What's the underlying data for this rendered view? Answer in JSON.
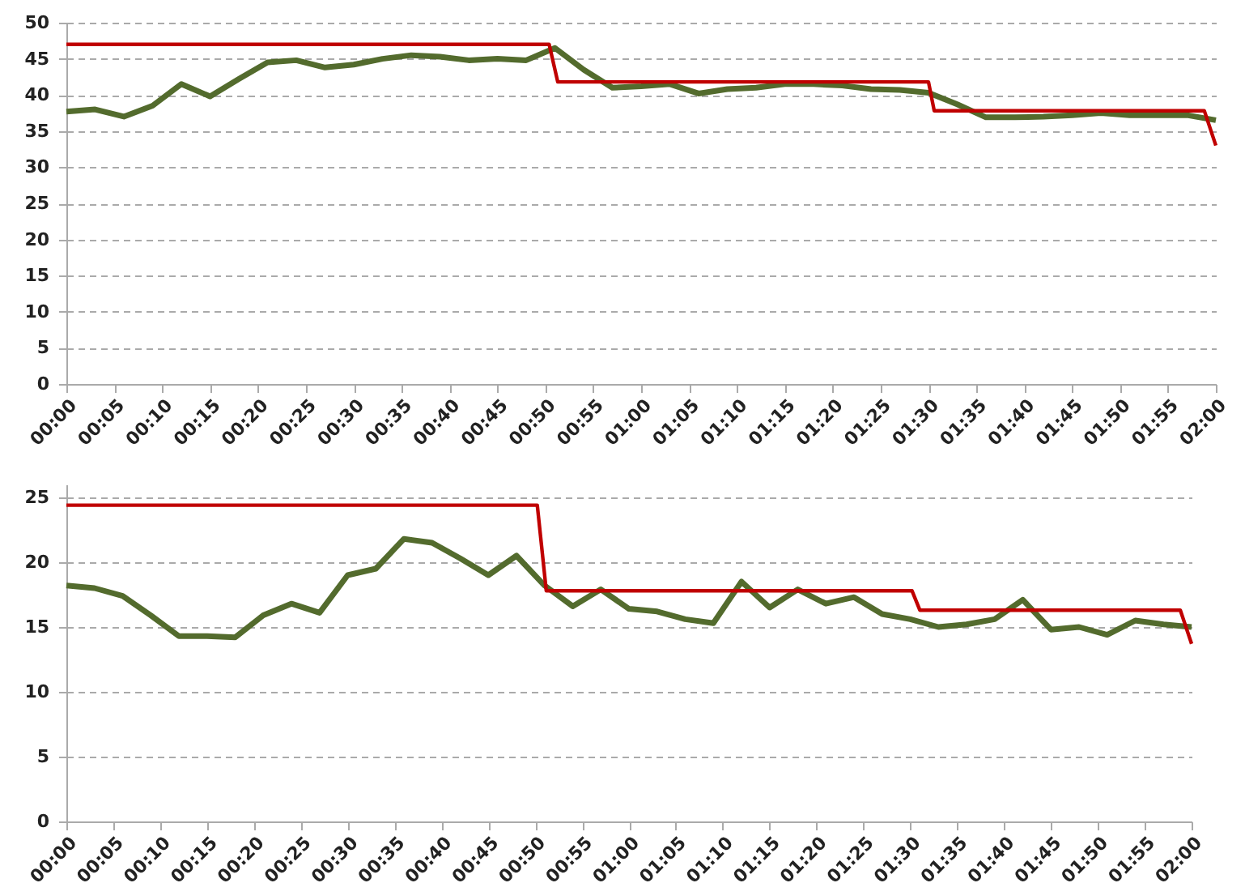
{
  "chart_data": [
    {
      "type": "line",
      "xlim": [
        0,
        2
      ],
      "ylim": [
        0,
        50
      ],
      "yticks": [
        0,
        5,
        10,
        15,
        20,
        25,
        30,
        35,
        40,
        45,
        50
      ],
      "xticks": [
        {
          "value": 0,
          "label": "00:00"
        },
        {
          "value": 0.0833,
          "label": "00:05"
        },
        {
          "value": 0.1667,
          "label": "00:10"
        },
        {
          "value": 0.25,
          "label": "00:15"
        },
        {
          "value": 0.3333,
          "label": "00:20"
        },
        {
          "value": 0.4167,
          "label": "00:25"
        },
        {
          "value": 0.5,
          "label": "00:30"
        },
        {
          "value": 0.5833,
          "label": "00:35"
        },
        {
          "value": 0.6667,
          "label": "00:40"
        },
        {
          "value": 0.75,
          "label": "00:45"
        },
        {
          "value": 0.8333,
          "label": "00:50"
        },
        {
          "value": 0.9167,
          "label": "00:55"
        },
        {
          "value": 1,
          "label": "01:00"
        },
        {
          "value": 1.0833,
          "label": "01:05"
        },
        {
          "value": 1.1667,
          "label": "01:10"
        },
        {
          "value": 1.25,
          "label": "01:15"
        },
        {
          "value": 1.3333,
          "label": "01:20"
        },
        {
          "value": 1.4167,
          "label": "01:25"
        },
        {
          "value": 1.5,
          "label": "01:30"
        },
        {
          "value": 1.5833,
          "label": "01:35"
        },
        {
          "value": 1.6667,
          "label": "01:40"
        },
        {
          "value": 1.75,
          "label": "01:45"
        },
        {
          "value": 1.8333,
          "label": "01:50"
        },
        {
          "value": 1.9167,
          "label": "01:55"
        },
        {
          "value": 2,
          "label": "02:00"
        }
      ],
      "grid": "y",
      "series": [
        {
          "color": "#536b2d",
          "x": [
            0,
            0.05,
            0.1,
            0.15,
            0.2,
            0.25,
            0.3,
            0.35,
            0.4,
            0.45,
            0.5,
            0.55,
            0.6,
            0.65,
            0.7,
            0.75,
            0.8,
            0.85,
            0.9,
            0.95,
            1,
            1.05,
            1.1,
            1.15,
            1.2,
            1.25,
            1.3,
            1.35,
            1.4,
            1.45,
            1.5,
            1.55,
            1.6,
            1.65,
            1.7,
            1.75,
            1.8,
            1.85,
            1.9,
            1.95,
            2
          ],
          "values": [
            37.7,
            38,
            37,
            38.5,
            41.5,
            39.8,
            42.2,
            44.5,
            44.8,
            43.8,
            44.2,
            45,
            45.5,
            45.3,
            44.8,
            45,
            44.8,
            46.5,
            43.5,
            41,
            41.2,
            41.5,
            40.2,
            40.8,
            41,
            41.5,
            41.5,
            41.3,
            40.8,
            40.7,
            40.3,
            38.7,
            36.9,
            36.9,
            37,
            37.2,
            37.5,
            37.2,
            37.2,
            37.2,
            36.5
          ]
        },
        {
          "color": "#c00000",
          "x": [
            0,
            0.84,
            0.855,
            1.5,
            1.51,
            1.98,
            2
          ],
          "values": [
            47,
            47,
            41.8,
            41.8,
            37.8,
            37.8,
            33
          ]
        }
      ]
    },
    {
      "type": "line",
      "xlim": [
        0,
        2
      ],
      "ylim": [
        0,
        26
      ],
      "yticks": [
        0,
        5,
        10,
        15,
        20,
        25
      ],
      "xticks": [
        {
          "value": 0,
          "label": "00:00"
        },
        {
          "value": 0.0833,
          "label": "00:05"
        },
        {
          "value": 0.1667,
          "label": "00:10"
        },
        {
          "value": 0.25,
          "label": "00:15"
        },
        {
          "value": 0.3333,
          "label": "00:20"
        },
        {
          "value": 0.4167,
          "label": "00:25"
        },
        {
          "value": 0.5,
          "label": "00:30"
        },
        {
          "value": 0.5833,
          "label": "00:35"
        },
        {
          "value": 0.6667,
          "label": "00:40"
        },
        {
          "value": 0.75,
          "label": "00:45"
        },
        {
          "value": 0.8333,
          "label": "00:50"
        },
        {
          "value": 0.9167,
          "label": "00:55"
        },
        {
          "value": 1,
          "label": "01:00"
        },
        {
          "value": 1.0833,
          "label": "01:05"
        },
        {
          "value": 1.1667,
          "label": "01:10"
        },
        {
          "value": 1.25,
          "label": "01:15"
        },
        {
          "value": 1.3333,
          "label": "01:20"
        },
        {
          "value": 1.4167,
          "label": "01:25"
        },
        {
          "value": 1.5,
          "label": "01:30"
        },
        {
          "value": 1.5833,
          "label": "01:35"
        },
        {
          "value": 1.6667,
          "label": "01:40"
        },
        {
          "value": 1.75,
          "label": "01:45"
        },
        {
          "value": 1.8333,
          "label": "01:50"
        },
        {
          "value": 1.9167,
          "label": "01:55"
        },
        {
          "value": 2,
          "label": "02:00"
        }
      ],
      "grid": "y",
      "series": [
        {
          "color": "#536b2d",
          "x": [
            0,
            0.05,
            0.1,
            0.15,
            0.2,
            0.25,
            0.3,
            0.35,
            0.4,
            0.45,
            0.5,
            0.55,
            0.6,
            0.65,
            0.7,
            0.75,
            0.8,
            0.85,
            0.9,
            0.95,
            1,
            1.05,
            1.1,
            1.15,
            1.2,
            1.25,
            1.3,
            1.35,
            1.4,
            1.45,
            1.5,
            1.55,
            1.6,
            1.65,
            1.7,
            1.75,
            1.8,
            1.85,
            1.9,
            1.95,
            2
          ],
          "values": [
            18.2,
            18,
            17.4,
            15.9,
            14.3,
            14.3,
            14.2,
            15.9,
            16.8,
            16.1,
            19,
            19.5,
            21.8,
            21.5,
            20.3,
            19,
            20.5,
            18.2,
            16.6,
            17.9,
            16.4,
            16.2,
            15.6,
            15.3,
            18.5,
            16.5,
            17.9,
            16.8,
            17.3,
            16,
            15.6,
            15,
            15.2,
            15.6,
            17.1,
            14.8,
            15,
            14.4,
            15.5,
            15.2,
            15
          ]
        },
        {
          "color": "#c00000",
          "x": [
            0,
            0.837,
            0.853,
            1.503,
            1.517,
            1.98,
            2
          ],
          "values": [
            24.4,
            24.4,
            17.8,
            17.8,
            16.3,
            16.3,
            13.7
          ]
        }
      ]
    }
  ]
}
